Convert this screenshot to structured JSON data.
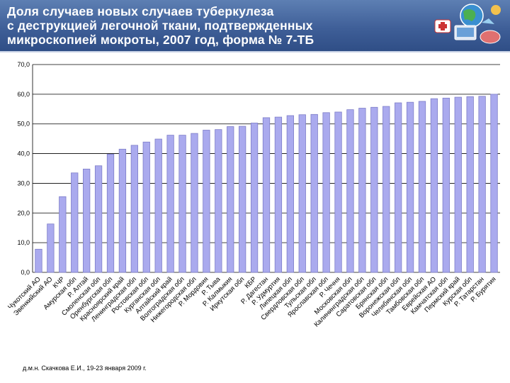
{
  "title_lines": [
    "Доля случаев новых случаев туберкулеза",
    "с деструкцией легочной ткани, подтвержденных",
    "микроскопией мокроты, 2007 год, форма № 7-ТБ"
  ],
  "footer": "д.м.н. Скачкова Е.И., 19-23 января 2009 г.",
  "colors": {
    "header": "#3f5f98",
    "bar_fill": "#aaaaee",
    "bar_stroke": "#7d7dc8"
  },
  "chart_data": {
    "type": "bar",
    "title": "Доля случаев новых случаев туберкулеза с деструкцией легочной ткани, подтвержденных микроскопией мокроты, 2007 год, форма № 7-ТБ",
    "xlabel": "",
    "ylabel": "",
    "ylim": [
      0,
      70
    ],
    "yticks": [
      0,
      10,
      20,
      30,
      40,
      50,
      60,
      70
    ],
    "ytick_labels": [
      "0,0",
      "10,0",
      "20,0",
      "30,0",
      "40,0",
      "50,0",
      "60,0",
      "70,0"
    ],
    "grid": true,
    "categories": [
      "Чукотский АО",
      "Эвенкийский АО",
      "КЧР",
      "Амурская обл",
      "Р. Алтай",
      "Смоленская обл",
      "Оренбургская обл",
      "Красноярский край",
      "Ленинградская обл",
      "Ростовская обл",
      "Курганская обл",
      "Алтайский край",
      "Волгоградская обл",
      "Нижегородская обл",
      "Р. Мордовия",
      "Р. Тыва",
      "Р. Калмыкия",
      "Иркутская обл",
      "КБР",
      "Р. Дагестан",
      "Р. Удмуртия",
      "Липецкая обл",
      "Свердловская обл",
      "Тульская обл",
      "Ярославская обл",
      "Р. Чечня",
      "Московская обл",
      "Калининградская обл",
      "Саратовская обл",
      "Брянская обл",
      "Воронежская обл",
      "Челябинская обл",
      "Тамбовская обл",
      "Еврейская АО",
      "Камчатская обл",
      "Пермский край",
      "Курская обл",
      "Р. Татарстан",
      "Р. Бурятия"
    ],
    "values": [
      7.8,
      16.3,
      25.5,
      33.5,
      34.8,
      35.9,
      39.8,
      41.5,
      42.8,
      43.9,
      44.9,
      46.2,
      46.2,
      46.8,
      47.9,
      48.1,
      49.1,
      49.2,
      50.3,
      52.1,
      52.3,
      52.8,
      53.1,
      53.2,
      53.8,
      54.0,
      54.8,
      55.3,
      55.6,
      55.9,
      57.1,
      57.3,
      57.6,
      58.5,
      58.7,
      59.0,
      59.2,
      59.3,
      60.0
    ]
  }
}
